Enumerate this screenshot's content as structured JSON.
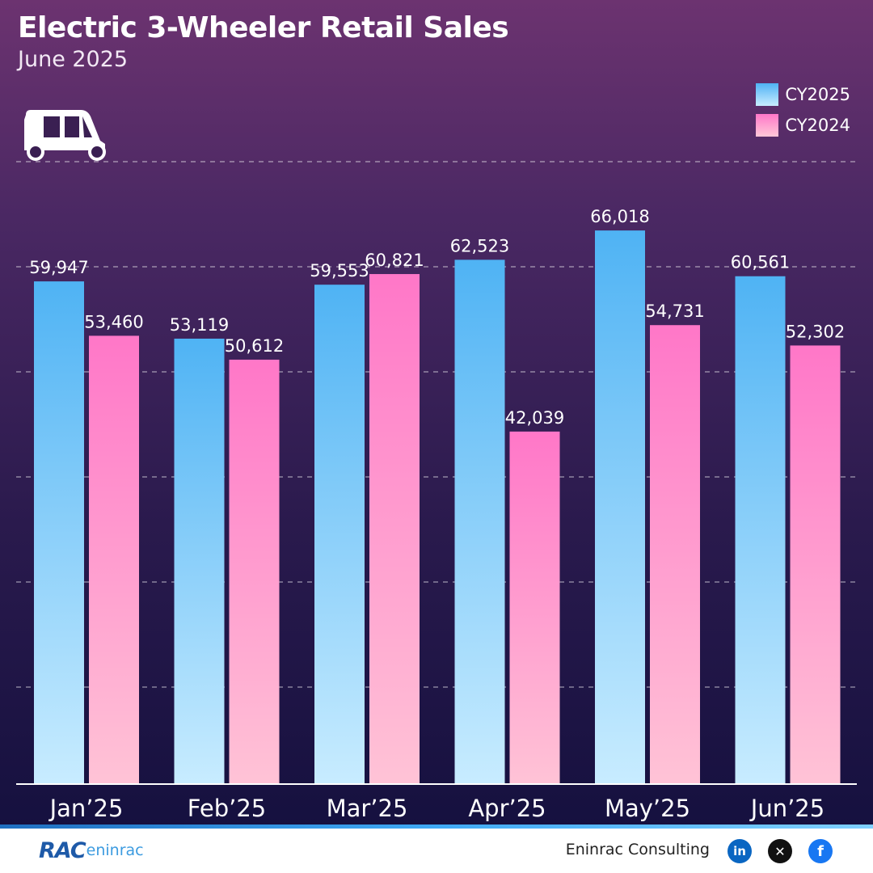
{
  "header": {
    "title": "Electric 3-Wheeler Retail Sales",
    "subtitle": "June 2025"
  },
  "legend": {
    "items": [
      {
        "label": "CY2025",
        "color": "#4fb3f4"
      },
      {
        "label": "CY2024",
        "color": "#ff77c8"
      }
    ]
  },
  "icons": {
    "vehicle": "auto-rickshaw-icon"
  },
  "chart_data": {
    "type": "bar",
    "categories": [
      "Jan’25",
      "Feb’25",
      "Mar’25",
      "Apr’25",
      "May’25",
      "Jun’25"
    ],
    "series": [
      {
        "name": "CY2025",
        "values": [
          59947,
          53119,
          59553,
          62523,
          66018,
          60561
        ],
        "labels": [
          "59,947",
          "53,119",
          "59,553",
          "62,523",
          "66,018",
          "60,561"
        ],
        "color": "#4fb3f4"
      },
      {
        "name": "CY2024",
        "values": [
          53460,
          50612,
          60821,
          42039,
          54731,
          52302
        ],
        "labels": [
          "53,460",
          "50,612",
          "60,821",
          "42,039",
          "54,731",
          "52,302"
        ],
        "color": "#ff77c8"
      }
    ],
    "ylim": [
      0,
      75000
    ],
    "grid": true,
    "legend_position": "top-right"
  },
  "footer": {
    "logo_rac": "RAC",
    "logo_name": "eninrac",
    "company": "Eninrac Consulting",
    "social": [
      "linkedin-icon",
      "x-icon",
      "facebook-icon"
    ]
  }
}
